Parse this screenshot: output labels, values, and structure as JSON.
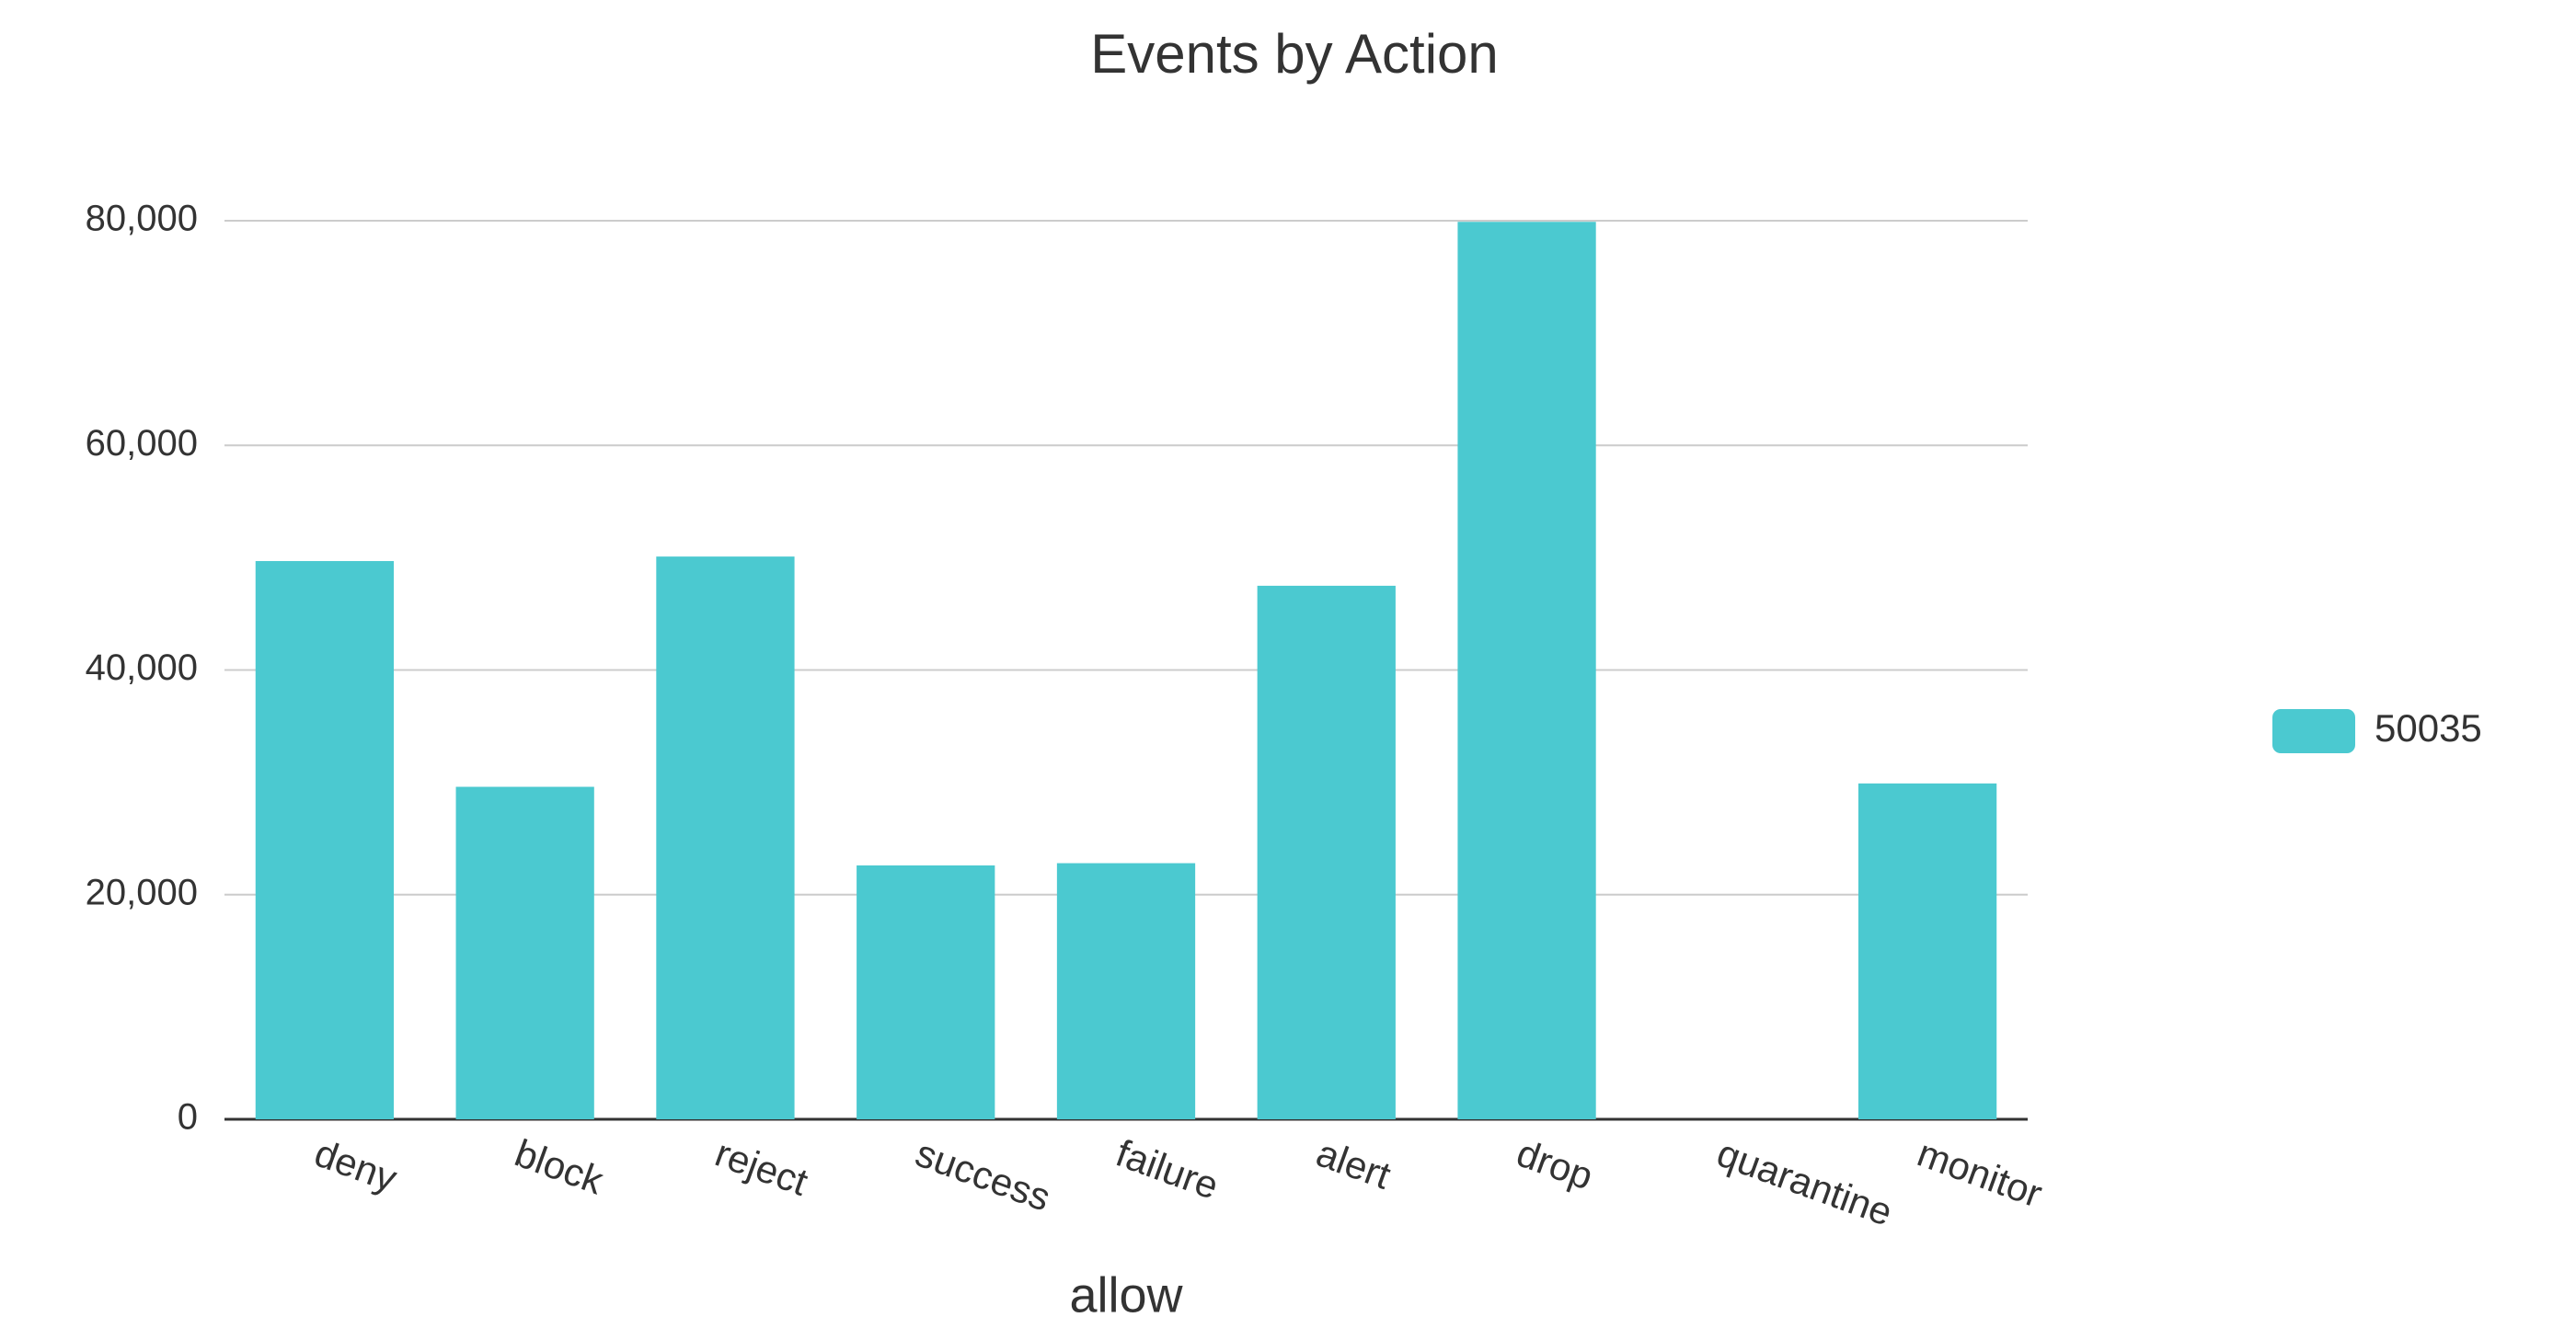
{
  "chart_data": {
    "type": "bar",
    "title": "Events by Action",
    "x_label": "allow",
    "categories": [
      "deny",
      "block",
      "reject",
      "success",
      "failure",
      "alert",
      "drop",
      "quarantine",
      "monitor"
    ],
    "series": [
      {
        "name": "50035",
        "color": "#4bc9d0",
        "values": [
          49700,
          29600,
          50100,
          22600,
          22800,
          47500,
          79900,
          0,
          29900
        ]
      }
    ],
    "ylim": [
      0,
      80000
    ],
    "yticks": [
      0,
      {
        "value": 20000,
        "label": "20,000"
      },
      {
        "value": 40000,
        "label": "40,000"
      },
      {
        "value": 60000,
        "label": "60,000"
      },
      {
        "value": 80000,
        "label": "80,000"
      }
    ],
    "grid": true,
    "legend": "right"
  }
}
